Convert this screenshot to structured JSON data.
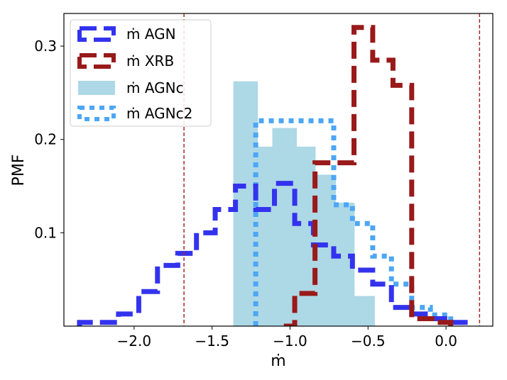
{
  "chart_data": {
    "type": "histogram-step",
    "xlabel": "ṁ",
    "ylabel": "PMF",
    "xlim": [
      -2.45,
      0.3
    ],
    "ylim": [
      0,
      0.335
    ],
    "xticks": [
      -2.0,
      -1.5,
      -1.0,
      -0.5,
      0.0
    ],
    "xtick_labels": [
      "−2.0",
      "−1.5",
      "−1.0",
      "−0.5",
      "0.0"
    ],
    "yticks": [
      0.1,
      0.2,
      0.3
    ],
    "ytick_labels": [
      "0.1",
      "0.2",
      "0.3"
    ],
    "vlines": [
      -1.68,
      0.215
    ],
    "legend_position": "upper-left",
    "series": [
      {
        "name": "ṁ AGN",
        "label": "ṁ AGN",
        "style": "dashed",
        "color": "#3333ee",
        "edges": [
          -2.35,
          -2.22,
          -2.1,
          -1.97,
          -1.85,
          -1.72,
          -1.6,
          -1.48,
          -1.35,
          -1.22,
          -1.1,
          -0.97,
          -0.85,
          -0.72,
          -0.6,
          -0.47,
          -0.35,
          -0.22,
          -0.1,
          0.03,
          0.15
        ],
        "values": [
          0.004,
          0.004,
          0.013,
          0.037,
          0.065,
          0.078,
          0.1,
          0.125,
          0.15,
          0.125,
          0.153,
          0.11,
          0.087,
          0.075,
          0.06,
          0.045,
          0.02,
          0.013,
          0.008,
          0.004
        ]
      },
      {
        "name": "ṁ XRB",
        "label": "ṁ XRB",
        "style": "dashed",
        "color": "#991a1a",
        "edges": [
          -1.04,
          -0.97,
          -0.84,
          -0.72,
          -0.59,
          -0.47,
          -0.34,
          -0.22,
          -0.09,
          0.03
        ],
        "values": [
          0.0,
          0.035,
          0.175,
          0.175,
          0.32,
          0.285,
          0.258,
          0.008,
          0.004
        ]
      },
      {
        "name": "ṁ AGNc",
        "label": "ṁ AGNc",
        "style": "filled",
        "color": "#add8e6",
        "edges": [
          -1.35,
          -1.22,
          -1.1,
          -0.97,
          -0.85,
          -0.72,
          -0.6,
          -0.47
        ],
        "values": [
          0.26,
          0.19,
          0.21,
          0.19,
          0.16,
          0.13,
          0.03
        ]
      },
      {
        "name": "ṁ AGNc2",
        "label": "ṁ AGNc2",
        "style": "dotted",
        "color": "#4da6f5",
        "edges": [
          -1.22,
          -1.1,
          -0.97,
          -0.85,
          -0.72,
          -0.6,
          -0.47,
          -0.35,
          -0.22,
          -0.1,
          0.03
        ],
        "values": [
          0.22,
          0.22,
          0.22,
          0.22,
          0.13,
          0.11,
          0.075,
          0.045,
          0.02,
          0.012
        ]
      }
    ]
  }
}
